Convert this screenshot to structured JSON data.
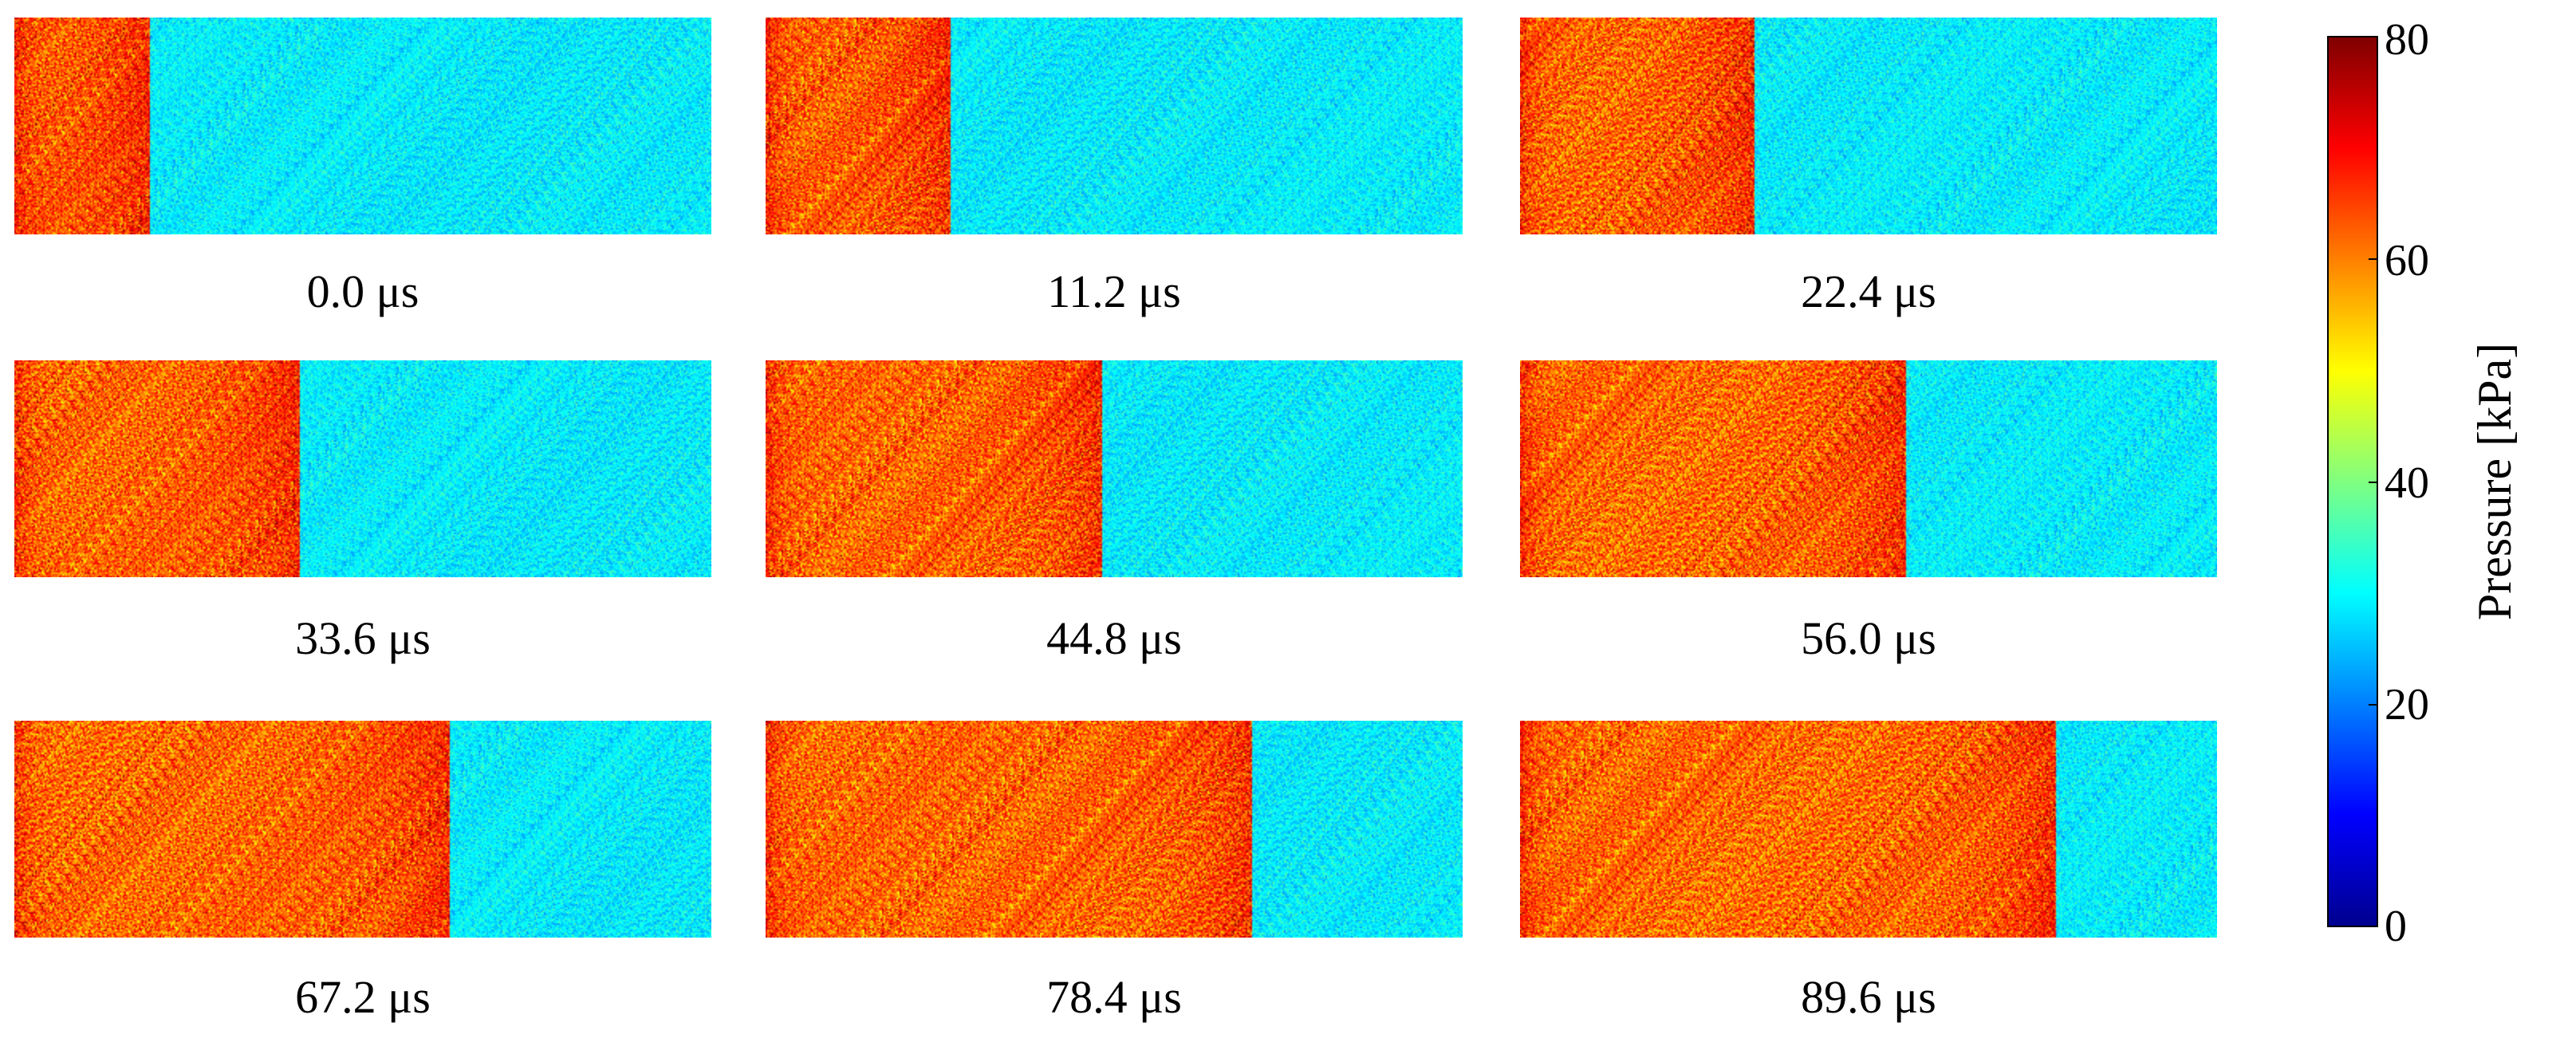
{
  "chart_data": {
    "type": "heatmap",
    "colorbar": {
      "label": "Pressure [kPa]",
      "range": [
        0,
        80
      ],
      "ticks": [
        "0",
        "20",
        "40",
        "60",
        "80"
      ],
      "colormap": "jet",
      "colors": [
        "#00008f",
        "#0000ff",
        "#0080ff",
        "#00ffff",
        "#80ff80",
        "#ffff00",
        "#ff8000",
        "#ff0000",
        "#800000"
      ]
    },
    "pre_shock_pressure_kPa": 29,
    "post_shock_pressure_kPa": 62,
    "panels": [
      {
        "label": "0.0 μs",
        "time_us": 0.0,
        "front_fraction": 0.195
      },
      {
        "label": "11.2 μs",
        "time_us": 11.2,
        "front_fraction": 0.265
      },
      {
        "label": "22.4 μs",
        "time_us": 22.4,
        "front_fraction": 0.336
      },
      {
        "label": "33.6 μs",
        "time_us": 33.6,
        "front_fraction": 0.41
      },
      {
        "label": "44.8 μs",
        "time_us": 44.8,
        "front_fraction": 0.482
      },
      {
        "label": "56.0 μs",
        "time_us": 56.0,
        "front_fraction": 0.553
      },
      {
        "label": "67.2 μs",
        "time_us": 67.2,
        "front_fraction": 0.625
      },
      {
        "label": "78.4 μs",
        "time_us": 78.4,
        "front_fraction": 0.697
      },
      {
        "label": "89.6 μs",
        "time_us": 89.6,
        "front_fraction": 0.77
      }
    ]
  }
}
